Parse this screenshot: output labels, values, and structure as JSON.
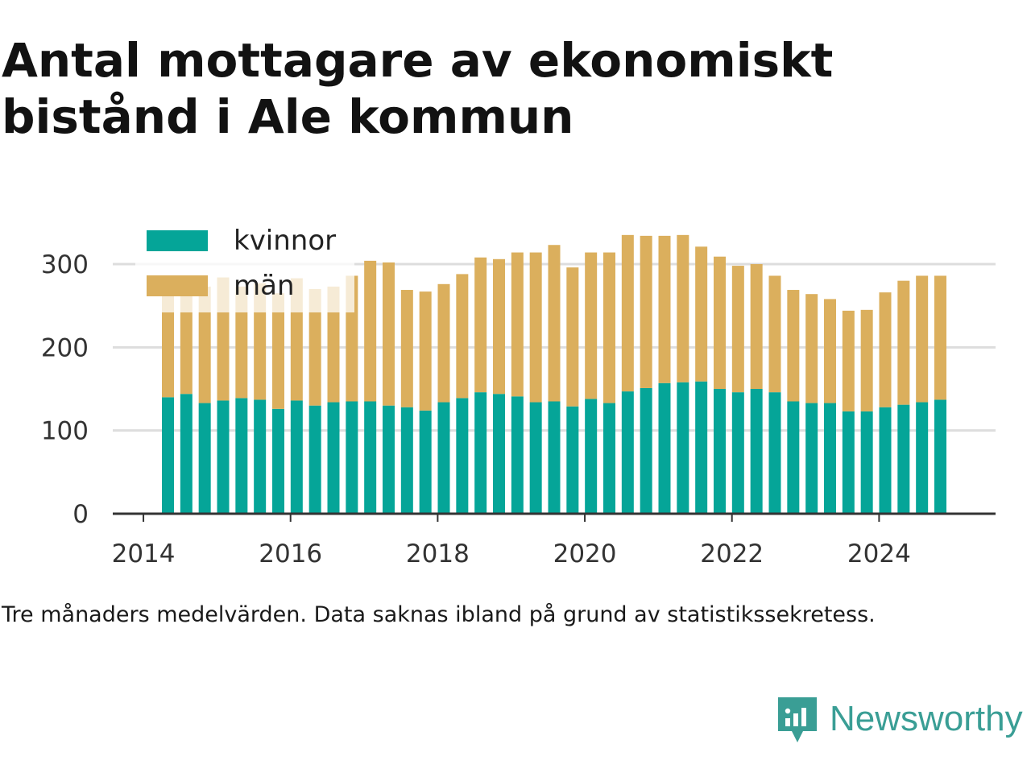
{
  "title": "Antal mottagare av ekonomiskt bistånd i Ale kommun",
  "note": "Tre månaders medelvärden. Data saknas ibland på grund av statistikssekretess.",
  "brand": {
    "name": "Newsworthy",
    "icon": "newsworthy-logo-icon",
    "color": "#3a9e95"
  },
  "chart_data": {
    "type": "bar",
    "stacked": true,
    "x": [
      "2014-05",
      "2014-08",
      "2014-11",
      "2015-02",
      "2015-05",
      "2015-08",
      "2015-11",
      "2016-02",
      "2016-05",
      "2016-08",
      "2016-11",
      "2017-02",
      "2017-05",
      "2017-08",
      "2017-11",
      "2018-02",
      "2018-05",
      "2018-08",
      "2018-11",
      "2019-02",
      "2019-05",
      "2019-08",
      "2019-11",
      "2020-02",
      "2020-05",
      "2020-08",
      "2020-11",
      "2021-02",
      "2021-05",
      "2021-08",
      "2021-11",
      "2022-02",
      "2022-05",
      "2022-08",
      "2022-11",
      "2023-02",
      "2023-05",
      "2023-08",
      "2023-11",
      "2024-02",
      "2024-05",
      "2024-08",
      "2024-11"
    ],
    "series": [
      {
        "name": "kvinnor",
        "color": "#05a598",
        "values": [
          140,
          144,
          133,
          136,
          139,
          137,
          126,
          136,
          130,
          134,
          135,
          135,
          130,
          128,
          124,
          134,
          139,
          146,
          144,
          141,
          134,
          135,
          129,
          138,
          133,
          147,
          151,
          157,
          158,
          159,
          150,
          146,
          150,
          146,
          135,
          133,
          133,
          123,
          123,
          128,
          131,
          134,
          137
        ]
      },
      {
        "name": "män",
        "color": "#dbaf5d",
        "values": [
          132,
          129,
          140,
          148,
          134,
          140,
          139,
          147,
          140,
          139,
          151,
          169,
          172,
          141,
          143,
          142,
          149,
          162,
          162,
          173,
          180,
          188,
          167,
          176,
          181,
          188,
          183,
          177,
          177,
          162,
          159,
          152,
          150,
          140,
          134,
          131,
          125,
          121,
          122,
          138,
          149,
          152,
          149
        ]
      }
    ],
    "xticks": [
      "2014",
      "2016",
      "2018",
      "2020",
      "2022",
      "2024"
    ],
    "yticks": [
      0,
      100,
      200,
      300
    ],
    "ylim": [
      0,
      345
    ],
    "xlim": [
      "2013-08",
      "2025-08"
    ],
    "grid": "horizontal",
    "legend_position": "top-left",
    "xlabel": "",
    "ylabel": ""
  }
}
